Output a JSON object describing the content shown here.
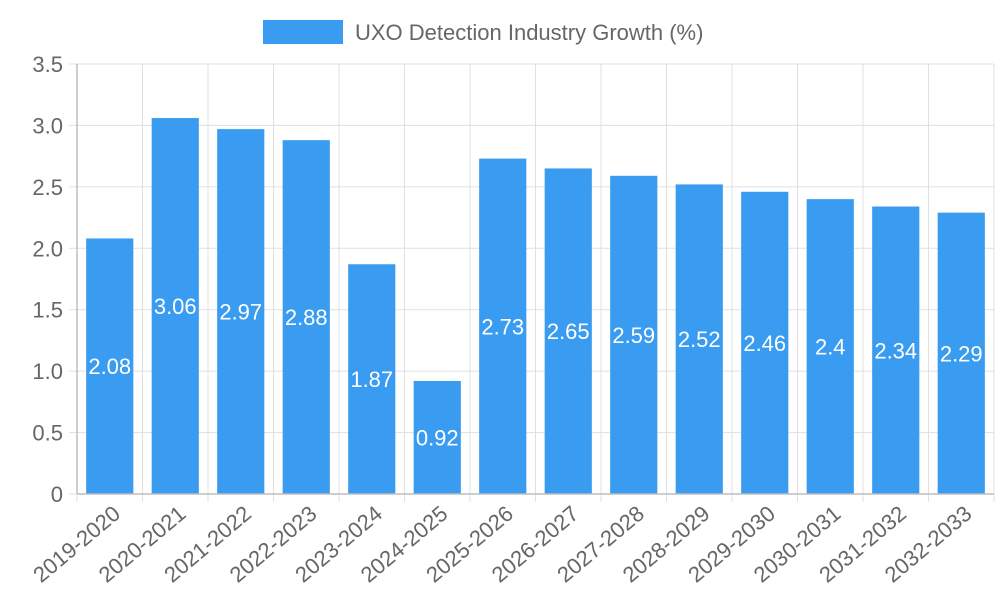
{
  "chart_data": {
    "type": "bar",
    "categories": [
      "2019-2020",
      "2020-2021",
      "2021-2022",
      "2022-2023",
      "2023-2024",
      "2024-2025",
      "2025-2026",
      "2026-2027",
      "2027-2028",
      "2028-2029",
      "2029-2030",
      "2030-2031",
      "2031-2032",
      "2032-2033"
    ],
    "series": [
      {
        "name": "UXO Detection Industry Growth (%)",
        "values": [
          2.08,
          3.06,
          2.97,
          2.88,
          1.87,
          0.92,
          2.73,
          2.65,
          2.59,
          2.52,
          2.46,
          2.4,
          2.34,
          2.29
        ],
        "color": "#399cf0"
      }
    ],
    "data_labels": [
      "2.08",
      "3.06",
      "2.97",
      "2.88",
      "1.87",
      "0.92",
      "2.73",
      "2.65",
      "2.59",
      "2.52",
      "2.46",
      "2.4",
      "2.34",
      "2.29"
    ],
    "y_ticks": [
      "0",
      "0.5",
      "1.0",
      "1.5",
      "2.0",
      "2.5",
      "3.0",
      "3.5"
    ],
    "ylim": [
      0,
      3.5
    ],
    "grid": true,
    "legend_position": "top-center"
  }
}
